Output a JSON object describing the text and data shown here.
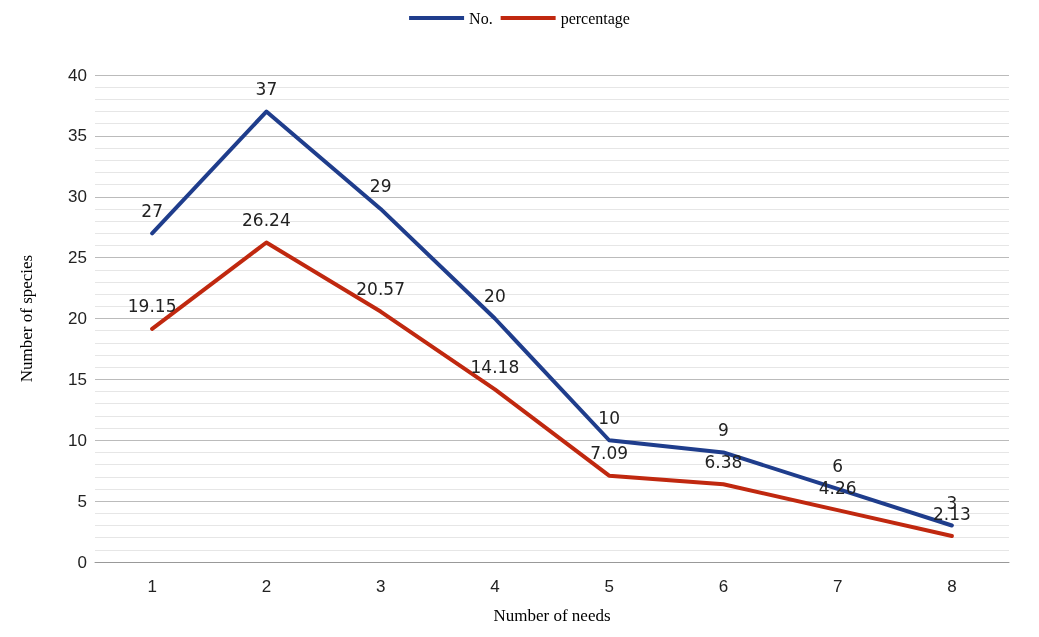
{
  "chart_data": {
    "type": "line",
    "xlabel": "Number of needs",
    "ylabel": "Number of species",
    "categories": [
      "1",
      "2",
      "3",
      "4",
      "5",
      "6",
      "7",
      "8"
    ],
    "series": [
      {
        "name": "No.",
        "color": "#1f3d8c",
        "values": [
          27,
          37,
          29,
          20,
          10,
          9,
          6,
          3
        ]
      },
      {
        "name": "percentage",
        "color": "#c0280f",
        "values": [
          19.15,
          26.24,
          20.57,
          14.18,
          7.09,
          6.38,
          4.26,
          2.13
        ]
      }
    ],
    "ylim": [
      0,
      40
    ],
    "yticks": [
      0,
      5,
      10,
      15,
      20,
      25,
      30,
      35,
      40
    ],
    "grid": "y",
    "legend": "top",
    "data_labels": true,
    "marker": "none",
    "line_style": "solid"
  }
}
